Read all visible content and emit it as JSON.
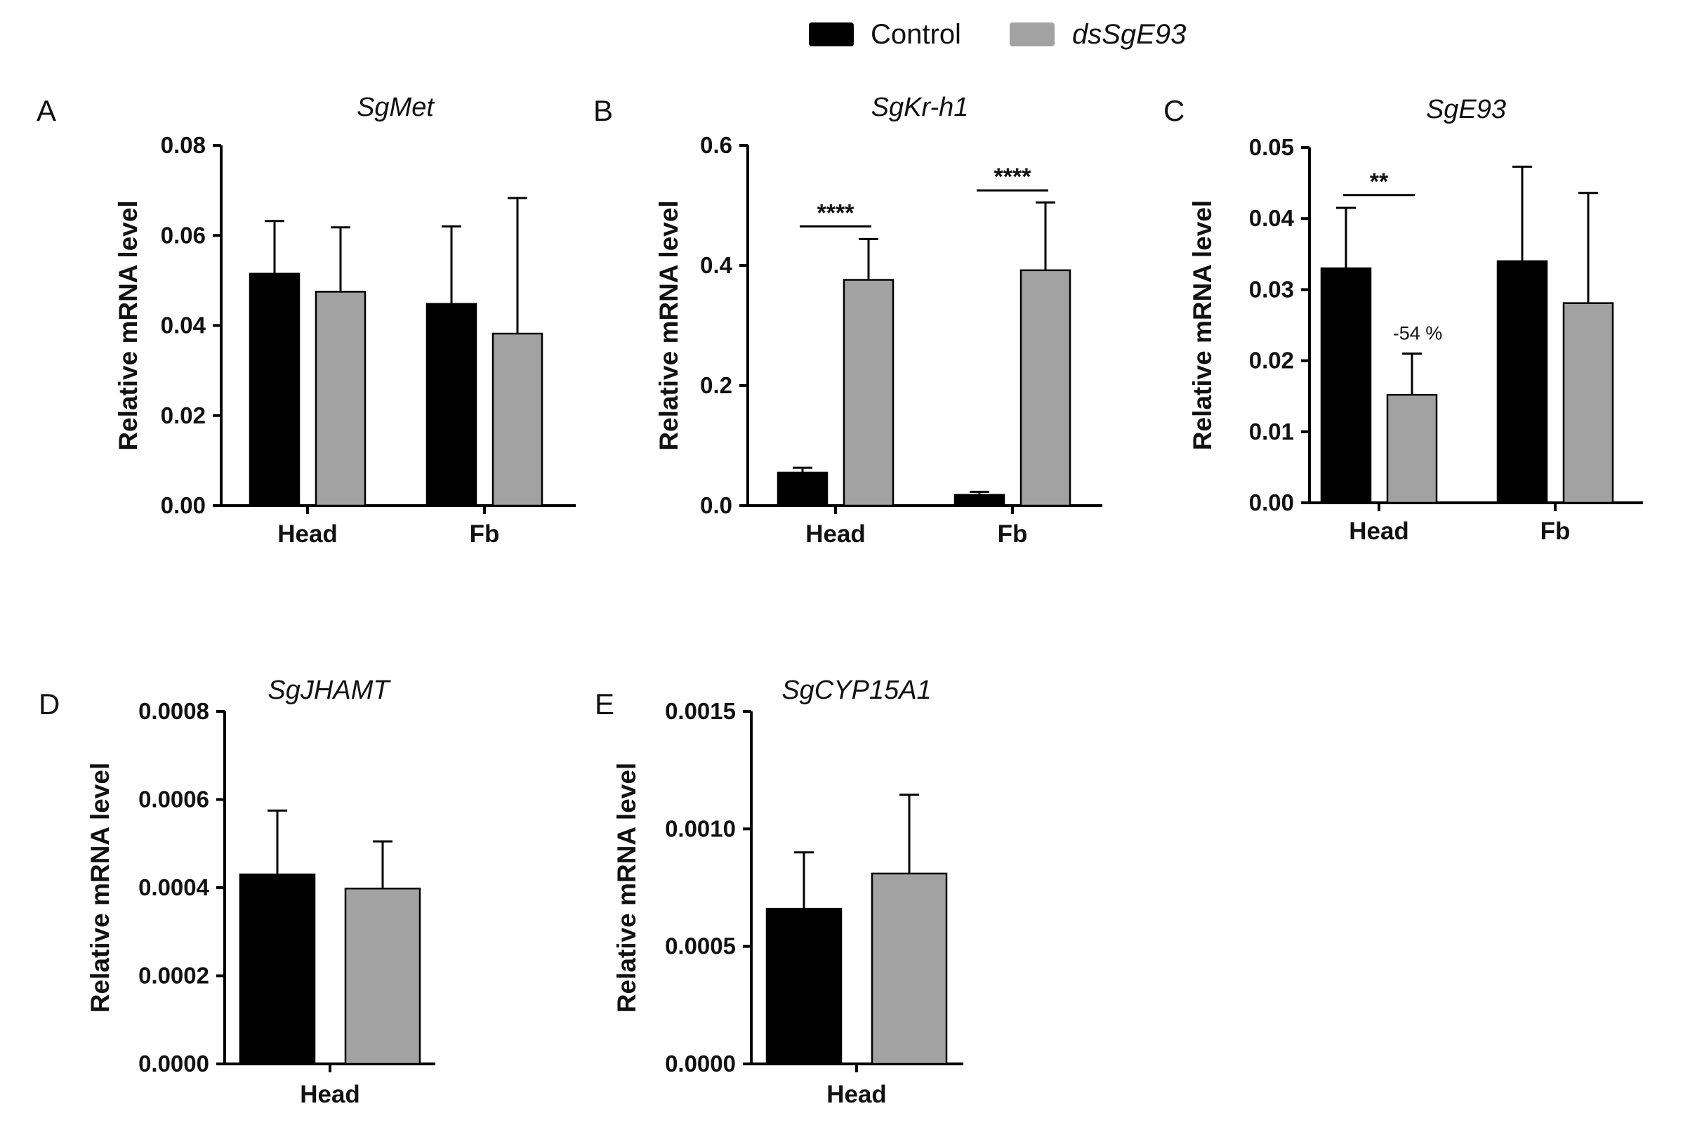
{
  "colors": {
    "control": "#000000",
    "treatment": "#a2a2a2",
    "sig_gray": "#9a9a9a",
    "sig_black": "#000000"
  },
  "legend": {
    "control_label": "Control",
    "treatment_label": "dsSgE93"
  },
  "chart_data": [
    {
      "letter": "A",
      "type": "bar",
      "title": "SgMet",
      "ylabel": "Relative mRNA level",
      "xlabel": "",
      "categories": [
        "Head",
        "Fb"
      ],
      "ylim": [
        0,
        0.08
      ],
      "yticks": [
        "0.00",
        "0.02",
        "0.04",
        "0.06",
        "0.08"
      ],
      "series": [
        {
          "name": "Control",
          "values": [
            0.0515,
            0.0448
          ],
          "errors": [
            0.0117,
            0.0172
          ]
        },
        {
          "name": "dsSgE93",
          "values": [
            0.0475,
            0.0382
          ],
          "errors": [
            0.0143,
            0.0301
          ]
        }
      ],
      "significance": [],
      "annotations": []
    },
    {
      "letter": "B",
      "type": "bar",
      "title": "SgKr-h1",
      "ylabel": "Relative mRNA level",
      "xlabel": "",
      "categories": [
        "Head",
        "Fb"
      ],
      "ylim": [
        0,
        0.6
      ],
      "yticks": [
        "0.0",
        "0.2",
        "0.4",
        "0.6"
      ],
      "series": [
        {
          "name": "Control",
          "values": [
            0.055,
            0.018
          ],
          "errors": [
            0.008,
            0.005
          ]
        },
        {
          "name": "dsSgE93",
          "values": [
            0.376,
            0.392
          ],
          "errors": [
            0.068,
            0.113
          ]
        }
      ],
      "significance": [
        {
          "category": 0,
          "label": "****",
          "y": 0.465,
          "color": "sig_gray"
        },
        {
          "category": 1,
          "label": "****",
          "y": 0.525,
          "color": "sig_black"
        }
      ],
      "annotations": []
    },
    {
      "letter": "C",
      "type": "bar",
      "title": "SgE93",
      "ylabel": "Relative mRNA level",
      "xlabel": "",
      "categories": [
        "Head",
        "Fb"
      ],
      "ylim": [
        0,
        0.05
      ],
      "yticks": [
        "0.00",
        "0.01",
        "0.02",
        "0.03",
        "0.04",
        "0.05"
      ],
      "series": [
        {
          "name": "Control",
          "values": [
            0.033,
            0.034
          ],
          "errors": [
            0.0085,
            0.0133
          ]
        },
        {
          "name": "dsSgE93",
          "values": [
            0.0152,
            0.0281
          ],
          "errors": [
            0.0058,
            0.0155
          ]
        }
      ],
      "significance": [
        {
          "category": 0,
          "label": "**",
          "y": 0.0433,
          "color": "sig_black"
        }
      ],
      "annotations": [
        {
          "category": 0,
          "series": 1,
          "text": "-54 %"
        }
      ]
    },
    {
      "letter": "D",
      "type": "bar",
      "title": "SgJHAMT",
      "ylabel": "Relative mRNA level",
      "xlabel": "",
      "categories": [
        "Head"
      ],
      "ylim": [
        0,
        0.0008
      ],
      "yticks": [
        "0.0000",
        "0.0002",
        "0.0004",
        "0.0006",
        "0.0008"
      ],
      "series": [
        {
          "name": "Control",
          "values": [
            0.00043
          ],
          "errors": [
            0.000145
          ]
        },
        {
          "name": "dsSgE93",
          "values": [
            0.000398
          ],
          "errors": [
            0.000107
          ]
        }
      ],
      "significance": [],
      "annotations": []
    },
    {
      "letter": "E",
      "type": "bar",
      "title": "SgCYP15A1",
      "ylabel": "Relative mRNA level",
      "xlabel": "",
      "categories": [
        "Head"
      ],
      "ylim": [
        0,
        0.0015
      ],
      "yticks": [
        "0.0000",
        "0.0005",
        "0.0010",
        "0.0015"
      ],
      "series": [
        {
          "name": "Control",
          "values": [
            0.00066
          ],
          "errors": [
            0.00024
          ]
        },
        {
          "name": "dsSgE93",
          "values": [
            0.00081
          ],
          "errors": [
            0.000335
          ]
        }
      ],
      "significance": [],
      "annotations": []
    }
  ]
}
